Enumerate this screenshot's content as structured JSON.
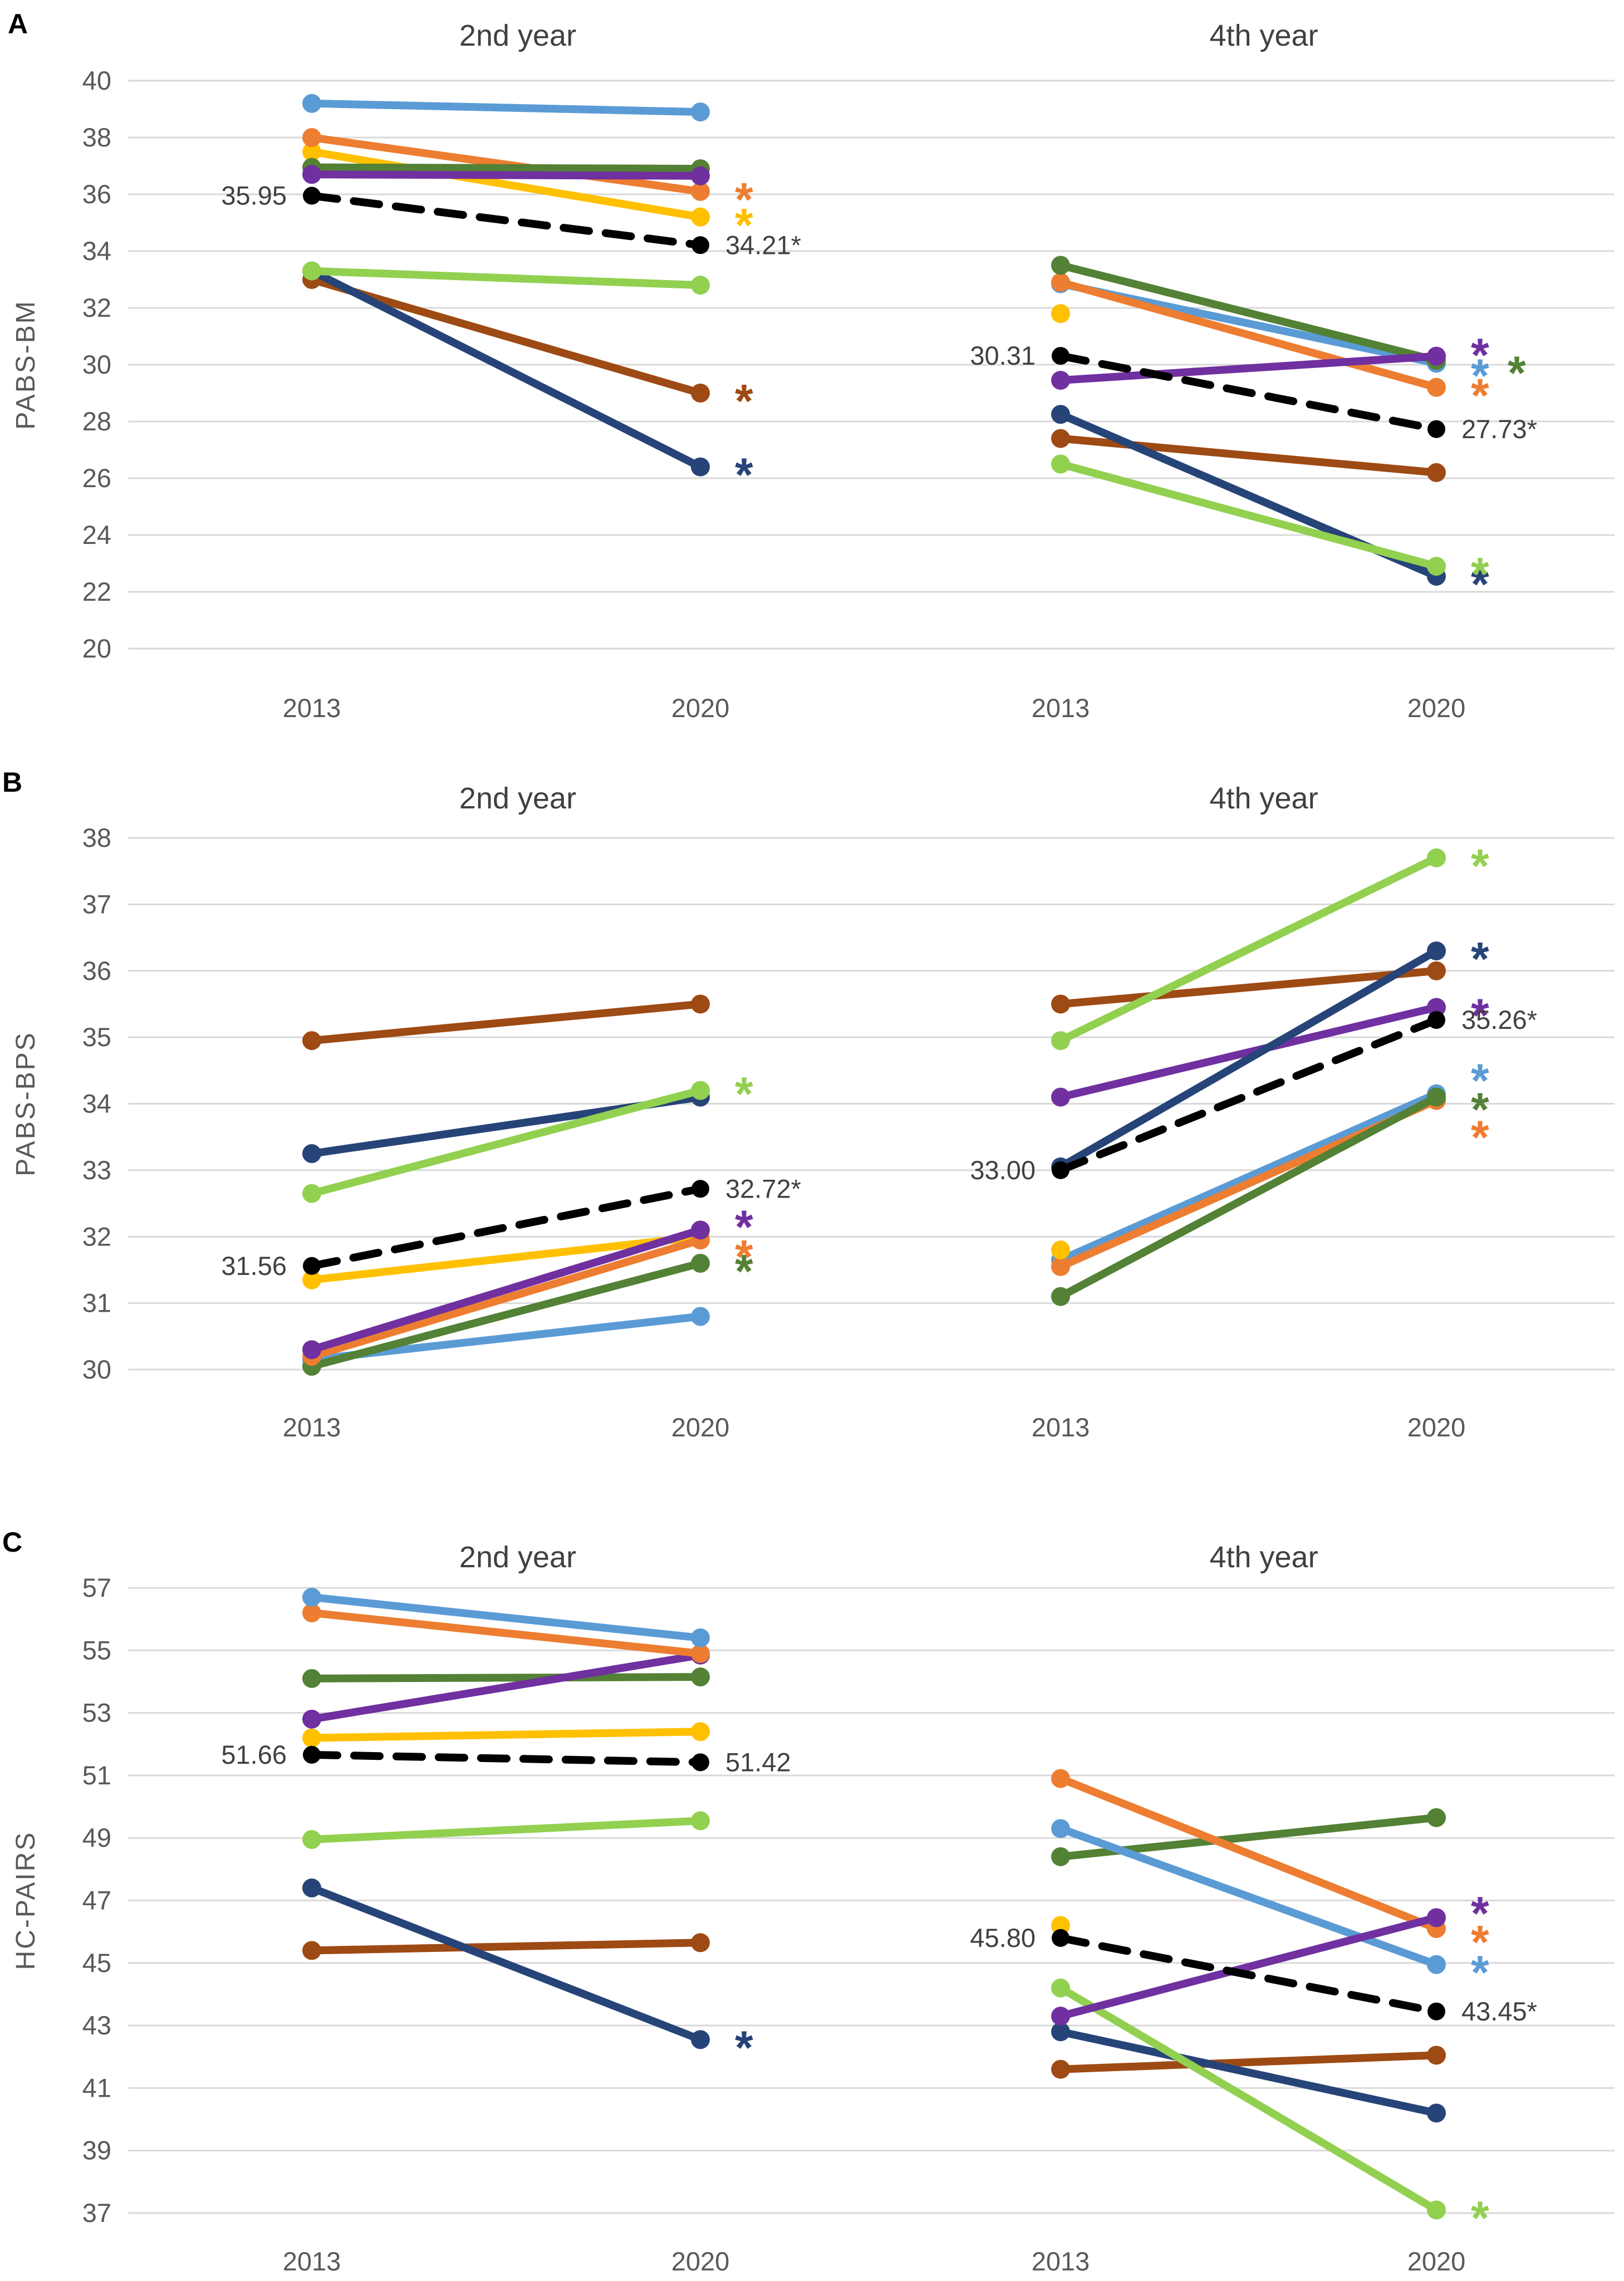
{
  "figure": {
    "panels": [
      {
        "letter": "A",
        "y_axis_title": "PABS-BM",
        "ylim": [
          20,
          40
        ],
        "yticks": [
          "40",
          "38",
          "36",
          "34",
          "32",
          "30",
          "28",
          "26",
          "24",
          "22",
          "20"
        ]
      },
      {
        "letter": "B",
        "y_axis_title": "PABS-BPS",
        "ylim": [
          30,
          38
        ],
        "yticks": [
          "38",
          "37",
          "36",
          "35",
          "34",
          "33",
          "32",
          "31",
          "30"
        ]
      },
      {
        "letter": "C",
        "y_axis_title": "HC-PAIRS",
        "ylim": [
          37,
          57
        ],
        "yticks": [
          "57",
          "55",
          "53",
          "51",
          "49",
          "47",
          "45",
          "43",
          "41",
          "39",
          "37"
        ]
      }
    ],
    "chart_titles": [
      "2nd year",
      "4th year"
    ],
    "x_tick_labels": [
      "2013",
      "2020"
    ]
  },
  "colors": {
    "light_blue": "#5B9BD5",
    "orange": "#ED7D31",
    "yellow": "#FFC000",
    "dark_green": "#538135",
    "purple": "#7030A0",
    "light_green": "#92D050",
    "dark_blue": "#264478",
    "brown": "#9E4A14",
    "mean": "#000000",
    "gridline": "#D9D9D9",
    "tick_label": "#595959",
    "data_label": "#404040",
    "title": "#404040",
    "panel_letter": "#000000"
  },
  "chart_data": [
    {
      "panel": "A",
      "type": "line",
      "title": "2nd year",
      "x": [
        "2013",
        "2020"
      ],
      "ylim": [
        20,
        40
      ],
      "ytick_step": 2,
      "grid": true,
      "series": [
        {
          "name": "yellow",
          "values": [
            37.5,
            35.2
          ],
          "sig": true
        },
        {
          "name": "orange",
          "values": [
            38.0,
            36.1
          ],
          "sig": true
        },
        {
          "name": "light_blue",
          "values": [
            39.2,
            38.9
          ],
          "sig": false
        },
        {
          "name": "dark_green",
          "values": [
            36.95,
            36.9
          ],
          "sig": false
        },
        {
          "name": "purple",
          "values": [
            36.7,
            36.65
          ],
          "sig": false
        },
        {
          "name": "brown",
          "values": [
            33.0,
            29.0
          ],
          "sig": true
        },
        {
          "name": "dark_blue",
          "values": [
            33.3,
            26.4
          ],
          "sig": true
        },
        {
          "name": "light_green",
          "values": [
            33.3,
            32.8
          ],
          "sig": false
        }
      ],
      "mean": {
        "values": [
          35.95,
          34.21
        ],
        "labels": [
          "35.95",
          "34.21*"
        ]
      }
    },
    {
      "panel": "A",
      "type": "line",
      "title": "4th year",
      "x": [
        "2013",
        "2020"
      ],
      "ylim": [
        20,
        40
      ],
      "ytick_step": 2,
      "grid": true,
      "series": [
        {
          "name": "light_blue",
          "values": [
            32.85,
            30.05
          ],
          "sig": true,
          "sig_dy": 8
        },
        {
          "name": "orange",
          "values": [
            32.9,
            29.2
          ],
          "sig": true
        },
        {
          "name": "dark_green",
          "values": [
            33.5,
            30.15
          ],
          "sig": true,
          "sig_dx": 128,
          "sig_dy": 8
        },
        {
          "name": "purple",
          "values": [
            29.45,
            30.3
          ],
          "sig": true,
          "sig_dy": -16
        },
        {
          "name": "yellow",
          "values": [
            31.8,
            null
          ],
          "sig": false
        },
        {
          "name": "brown",
          "values": [
            27.4,
            26.2
          ],
          "sig": false
        },
        {
          "name": "dark_blue",
          "values": [
            28.25,
            22.55
          ],
          "sig": true
        },
        {
          "name": "light_green",
          "values": [
            26.5,
            22.9
          ],
          "sig": true
        }
      ],
      "mean": {
        "values": [
          30.31,
          27.73
        ],
        "labels": [
          "30.31",
          "27.73*"
        ]
      }
    },
    {
      "panel": "B",
      "type": "line",
      "title": "2nd year",
      "x": [
        "2013",
        "2020"
      ],
      "ylim": [
        30,
        38
      ],
      "ytick_step": 1,
      "grid": true,
      "series": [
        {
          "name": "light_blue",
          "values": [
            30.15,
            30.8
          ],
          "sig": false
        },
        {
          "name": "dark_green",
          "values": [
            30.05,
            31.6
          ],
          "sig": true
        },
        {
          "name": "yellow",
          "values": [
            31.35,
            32.0
          ],
          "sig": false
        },
        {
          "name": "orange",
          "values": [
            30.2,
            31.95
          ],
          "sig": true,
          "sig_dy": 16
        },
        {
          "name": "purple",
          "values": [
            30.3,
            32.1
          ],
          "sig": true,
          "sig_dy": -20
        },
        {
          "name": "brown",
          "values": [
            34.95,
            35.5
          ],
          "sig": false
        },
        {
          "name": "dark_blue",
          "values": [
            33.25,
            34.1
          ],
          "sig": false
        },
        {
          "name": "light_green",
          "values": [
            32.65,
            34.2
          ],
          "sig": true,
          "sig_dy": -8
        }
      ],
      "mean": {
        "values": [
          31.56,
          32.72
        ],
        "labels": [
          "31.56",
          "32.72*"
        ]
      }
    },
    {
      "panel": "B",
      "type": "line",
      "title": "4th year",
      "x": [
        "2013",
        "2020"
      ],
      "ylim": [
        30,
        38
      ],
      "ytick_step": 1,
      "grid": true,
      "series": [
        {
          "name": "light_blue",
          "values": [
            31.65,
            34.15
          ],
          "sig": true,
          "sig_dy": -38
        },
        {
          "name": "orange",
          "values": [
            31.55,
            34.05
          ],
          "sig": true,
          "sig_dy": 52
        },
        {
          "name": "dark_green",
          "values": [
            31.1,
            34.1
          ],
          "sig": true,
          "sig_dy": 8
        },
        {
          "name": "yellow",
          "values": [
            31.8,
            null
          ],
          "sig": false
        },
        {
          "name": "brown",
          "values": [
            35.5,
            36.0
          ],
          "sig": false
        },
        {
          "name": "purple",
          "values": [
            34.1,
            35.45
          ],
          "sig": true
        },
        {
          "name": "dark_blue",
          "values": [
            33.05,
            36.3
          ],
          "sig": true
        },
        {
          "name": "light_green",
          "values": [
            34.95,
            37.7
          ],
          "sig": true
        }
      ],
      "mean": {
        "values": [
          33.0,
          35.26
        ],
        "labels": [
          "33.00",
          "35.26*"
        ]
      }
    },
    {
      "panel": "C",
      "type": "line",
      "title": "2nd year",
      "x": [
        "2013",
        "2020"
      ],
      "ylim": [
        37,
        57
      ],
      "ytick_step": 2,
      "grid": true,
      "series": [
        {
          "name": "dark_green",
          "values": [
            54.1,
            54.15
          ],
          "sig": false
        },
        {
          "name": "yellow",
          "values": [
            52.2,
            52.4
          ],
          "sig": false
        },
        {
          "name": "purple",
          "values": [
            52.8,
            54.85
          ],
          "sig": false
        },
        {
          "name": "orange",
          "values": [
            56.2,
            54.9
          ],
          "sig": false
        },
        {
          "name": "light_blue",
          "values": [
            56.7,
            55.4
          ],
          "sig": false
        },
        {
          "name": "brown",
          "values": [
            45.4,
            45.65
          ],
          "sig": false
        },
        {
          "name": "dark_blue",
          "values": [
            47.4,
            42.55
          ],
          "sig": true
        },
        {
          "name": "light_green",
          "values": [
            48.95,
            49.55
          ],
          "sig": false
        }
      ],
      "mean": {
        "values": [
          51.66,
          51.42
        ],
        "labels": [
          "51.66",
          "51.42"
        ]
      }
    },
    {
      "panel": "C",
      "type": "line",
      "title": "4th year",
      "x": [
        "2013",
        "2020"
      ],
      "ylim": [
        37,
        57
      ],
      "ytick_step": 2,
      "grid": true,
      "series": [
        {
          "name": "dark_green",
          "values": [
            48.4,
            49.65
          ],
          "sig": false
        },
        {
          "name": "light_blue",
          "values": [
            49.3,
            44.95
          ],
          "sig": true
        },
        {
          "name": "orange",
          "values": [
            50.9,
            46.1
          ],
          "sig": true,
          "sig_dy": 10
        },
        {
          "name": "yellow",
          "values": [
            46.2,
            null
          ],
          "sig": false
        },
        {
          "name": "brown",
          "values": [
            41.6,
            42.05
          ],
          "sig": false
        },
        {
          "name": "dark_blue",
          "values": [
            42.8,
            40.2
          ],
          "sig": false
        },
        {
          "name": "light_green",
          "values": [
            44.2,
            37.1
          ],
          "sig": true
        },
        {
          "name": "purple",
          "values": [
            43.3,
            46.45
          ],
          "sig": true,
          "sig_dy": -22
        }
      ],
      "mean": {
        "values": [
          45.8,
          43.45
        ],
        "labels": [
          "45.80",
          "43.45*"
        ]
      }
    }
  ]
}
